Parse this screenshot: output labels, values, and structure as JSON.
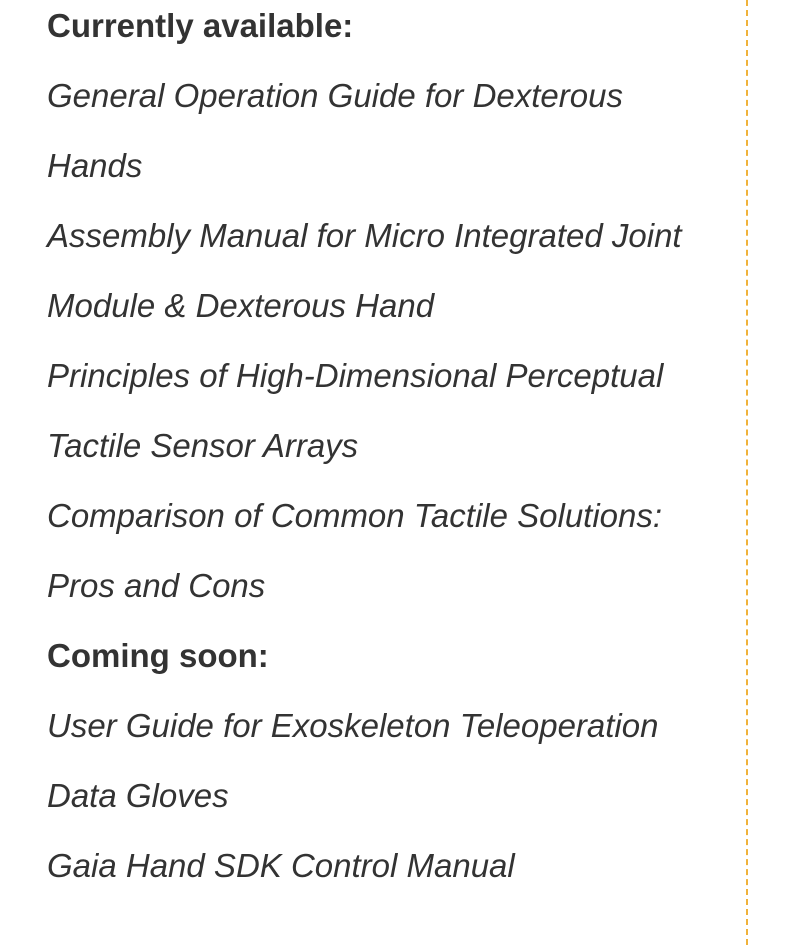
{
  "sections": [
    {
      "heading": "Currently available:",
      "lines": [
        "General Operation Guide for Dexterous",
        "Hands",
        "Assembly Manual for Micro Integrated Joint",
        "Module & Dexterous Hand",
        "Principles of High-Dimensional Perceptual",
        "Tactile Sensor Arrays",
        "Comparison of Common Tactile Solutions:",
        "Pros and Cons"
      ]
    },
    {
      "heading": "Coming soon:",
      "lines": [
        "User Guide for Exoskeleton Teleoperation",
        "Data Gloves",
        "Gaia Hand SDK Control Manual"
      ]
    }
  ],
  "colors": {
    "text": "#333333",
    "divider": "#f0b23a"
  }
}
